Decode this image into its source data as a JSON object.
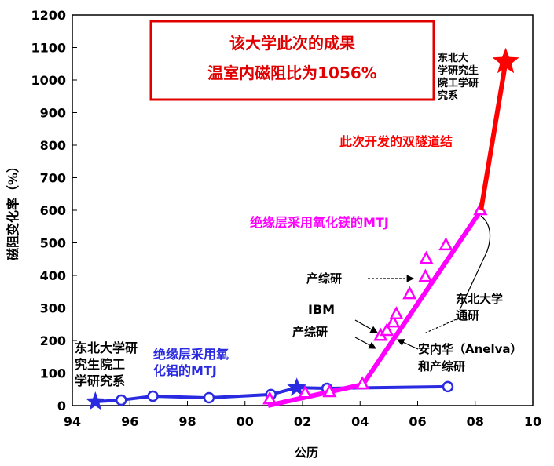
{
  "chart_data": {
    "type": "line",
    "title": [
      "该大学此次的成果",
      "温室内磁阻比为1056%"
    ],
    "title_color": "#e00000",
    "xlabel": "公历",
    "ylabel": "磁阻变化率（%）",
    "xlim": [
      1994,
      2010
    ],
    "xticks": [
      {
        "value": 1994,
        "label": "94"
      },
      {
        "value": 1996,
        "label": "96"
      },
      {
        "value": 1998,
        "label": "98"
      },
      {
        "value": 2000,
        "label": "00"
      },
      {
        "value": 2002,
        "label": "02"
      },
      {
        "value": 2004,
        "label": "04"
      },
      {
        "value": 2006,
        "label": "06"
      },
      {
        "value": 2008,
        "label": "08"
      },
      {
        "value": 2010,
        "label": "10"
      }
    ],
    "ylim": [
      0,
      1200
    ],
    "yticks": [
      0,
      100,
      200,
      300,
      400,
      500,
      600,
      700,
      800,
      900,
      1000,
      1100,
      1200
    ],
    "series": [
      {
        "color": "#2a2ae0",
        "line": true,
        "x": [
          1994.8,
          1995.7,
          1996.8,
          1998.75,
          2000.9,
          2001.8,
          2002.85,
          2007.05
        ],
        "values": [
          12,
          17,
          29,
          24,
          34,
          55,
          53,
          58
        ],
        "markers": [
          "star",
          "circle",
          "circle",
          "circle",
          "circle",
          "star",
          "circle",
          "circle"
        ]
      },
      {
        "color": "#ff00ff",
        "line": true,
        "x": [
          2000.8,
          2004.1,
          2008.2
        ],
        "values": [
          0,
          65,
          600
        ]
      },
      {
        "color": "#ff00ff",
        "line": false,
        "x": [
          2000.86,
          2002.09,
          2002.94,
          2004.08,
          2004.71,
          2004.93,
          2005.15,
          2005.26,
          2005.72,
          2006.27,
          2006.3,
          2006.98,
          2008.18
        ],
        "values": [
          19,
          38,
          41,
          65,
          214,
          229,
          255,
          280,
          342,
          395,
          450,
          492,
          600
        ],
        "marker": "triangle"
      },
      {
        "color": "#ff0000",
        "line": true,
        "x": [
          2008.2,
          2009.06
        ],
        "values": [
          600,
          1056
        ],
        "markers": [
          null,
          "star"
        ]
      }
    ],
    "annotations": [
      {
        "lines": [
          "东北大",
          "学研究生",
          "院工学研",
          "究系"
        ],
        "color": "#000000"
      },
      {
        "lines": [
          "此次开发的双隧道结"
        ],
        "color": "#ff0000"
      },
      {
        "lines": [
          "绝缘层采用氧化镁的MTJ"
        ],
        "color": "#ff00ff"
      },
      {
        "lines": [
          "产综研"
        ],
        "color": "#000000"
      },
      {
        "lines": [
          "IBM"
        ],
        "color": "#000000"
      },
      {
        "lines": [
          "产综研"
        ],
        "color": "#000000"
      },
      {
        "lines": [
          "东北大学",
          "通研"
        ],
        "color": "#000000"
      },
      {
        "lines": [
          "安内华（Anelva）",
          "和产综研"
        ],
        "color": "#000000"
      },
      {
        "lines": [
          "东北大学研",
          "究生院工",
          "学研究系"
        ],
        "color": "#000000"
      },
      {
        "lines": [
          "绝缘层采用氧",
          "化铝的MTJ"
        ],
        "color": "#2a2ae0"
      }
    ]
  }
}
